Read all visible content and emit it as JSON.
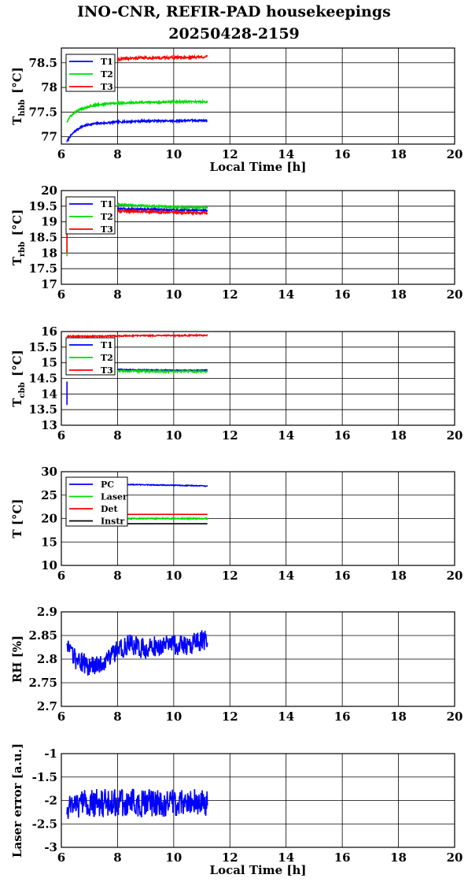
{
  "figure": {
    "title_line1": "INO-CNR, REFIR-PAD housekeepings",
    "title_line2": "20250428-2159"
  },
  "colors": {
    "blue": "#0000ff",
    "green": "#00dd00",
    "red": "#ff0000",
    "black": "#000000"
  },
  "chart_data": [
    {
      "type": "line",
      "ylabel_main": "T",
      "ylabel_sub": "hbb",
      "ylabel_unit": "[°C]",
      "xlabel": "Local Time [h]",
      "xlim": [
        6,
        20
      ],
      "ylim": [
        76.85,
        78.8
      ],
      "xticks": [
        "6",
        "8",
        "10",
        "12",
        "14",
        "16",
        "18",
        "20"
      ],
      "yticks": [
        {
          "v": 77,
          "label": "77"
        },
        {
          "v": 77.5,
          "label": "77.5"
        },
        {
          "v": 78,
          "label": "78"
        },
        {
          "v": 78.5,
          "label": "78.5"
        }
      ],
      "legend": [
        "T1",
        "T2",
        "T3"
      ],
      "series": [
        {
          "name": "T1",
          "color": "blue",
          "x": [
            6.2,
            6.3,
            6.5,
            6.7,
            7.0,
            7.3,
            7.6,
            8.0,
            8.5,
            9.0,
            9.5,
            10.0,
            10.5,
            11.0,
            11.2
          ],
          "y": [
            76.9,
            77.0,
            77.12,
            77.2,
            77.25,
            77.27,
            77.28,
            77.3,
            77.31,
            77.32,
            77.32,
            77.32,
            77.33,
            77.33,
            77.33
          ],
          "noise": 0.02
        },
        {
          "name": "T2",
          "color": "green",
          "x": [
            6.2,
            6.3,
            6.5,
            6.7,
            7.0,
            7.3,
            7.6,
            8.0,
            8.5,
            9.0,
            9.5,
            10.0,
            10.5,
            11.0,
            11.2
          ],
          "y": [
            77.3,
            77.4,
            77.5,
            77.56,
            77.62,
            77.65,
            77.67,
            77.68,
            77.69,
            77.7,
            77.7,
            77.71,
            77.71,
            77.71,
            77.71
          ],
          "noise": 0.02
        },
        {
          "name": "T3",
          "color": "red",
          "x": [
            8.0,
            8.5,
            9.0,
            9.5,
            10.0,
            10.5,
            11.0,
            11.2
          ],
          "y": [
            78.57,
            78.59,
            78.6,
            78.6,
            78.61,
            78.61,
            78.62,
            78.62
          ],
          "noise": 0.025
        }
      ]
    },
    {
      "type": "line",
      "ylabel_main": "T",
      "ylabel_sub": "rbb",
      "ylabel_unit": "[°C]",
      "xlabel": "",
      "xlim": [
        6,
        20
      ],
      "ylim": [
        17,
        20
      ],
      "xticks": [
        "6",
        "8",
        "10",
        "12",
        "14",
        "16",
        "18",
        "20"
      ],
      "yticks": [
        {
          "v": 17,
          "label": "17"
        },
        {
          "v": 17.5,
          "label": "17.5"
        },
        {
          "v": 18,
          "label": "18"
        },
        {
          "v": 18.5,
          "label": "18.5"
        },
        {
          "v": 19,
          "label": "19"
        },
        {
          "v": 19.5,
          "label": "19.5"
        },
        {
          "v": 20,
          "label": "20"
        }
      ],
      "legend": [
        "T1",
        "T2",
        "T3"
      ],
      "series": [
        {
          "name": "T1",
          "color": "blue",
          "x": [
            8.0,
            8.5,
            9.0,
            9.5,
            10.0,
            10.5,
            11.0,
            11.2
          ],
          "y": [
            19.42,
            19.41,
            19.4,
            19.39,
            19.38,
            19.37,
            19.37,
            19.37
          ],
          "noise": 0.03
        },
        {
          "name": "T2",
          "color": "green",
          "x": [
            8.0,
            8.5,
            9.0,
            9.5,
            10.0,
            10.5,
            11.0,
            11.2
          ],
          "y": [
            19.55,
            19.53,
            19.51,
            19.49,
            19.47,
            19.46,
            19.46,
            19.46
          ],
          "noise": 0.03
        },
        {
          "name": "T3",
          "color": "red",
          "x": [
            8.0,
            8.5,
            9.0,
            9.5,
            10.0,
            10.5,
            11.0,
            11.2
          ],
          "y": [
            19.35,
            19.34,
            19.33,
            19.31,
            19.3,
            19.29,
            19.28,
            19.28
          ],
          "noise": 0.04
        }
      ],
      "spikes": [
        {
          "color": "green",
          "x": 6.2,
          "y": [
            17.9,
            18.6
          ]
        },
        {
          "color": "red",
          "x": 6.2,
          "y": [
            18.0,
            18.6
          ]
        }
      ]
    },
    {
      "type": "line",
      "ylabel_main": "T",
      "ylabel_sub": "cbb",
      "ylabel_unit": "[°C]",
      "xlabel": "",
      "xlim": [
        6,
        20
      ],
      "ylim": [
        13,
        16
      ],
      "xticks": [
        "6",
        "8",
        "10",
        "12",
        "14",
        "16",
        "18",
        "20"
      ],
      "yticks": [
        {
          "v": 13,
          "label": "13"
        },
        {
          "v": 13.5,
          "label": "13.5"
        },
        {
          "v": 14,
          "label": "14"
        },
        {
          "v": 14.5,
          "label": "14.5"
        },
        {
          "v": 15,
          "label": "15"
        },
        {
          "v": 15.5,
          "label": "15.5"
        },
        {
          "v": 16,
          "label": "16"
        }
      ],
      "legend": [
        "T1",
        "T2",
        "T3"
      ],
      "series": [
        {
          "name": "T3",
          "color": "red",
          "x": [
            6.2,
            7.0,
            8.0,
            9.0,
            10.0,
            11.0,
            11.2
          ],
          "y": [
            15.85,
            15.85,
            15.86,
            15.87,
            15.87,
            15.88,
            15.88
          ],
          "noise": 0.02
        },
        {
          "name": "T1",
          "color": "blue",
          "x": [
            8.0,
            9.0,
            10.0,
            11.0,
            11.2
          ],
          "y": [
            14.78,
            14.77,
            14.76,
            14.76,
            14.76
          ],
          "noise": 0.015
        },
        {
          "name": "T2",
          "color": "green",
          "x": [
            8.0,
            9.0,
            10.0,
            11.0,
            11.2
          ],
          "y": [
            14.74,
            14.73,
            14.72,
            14.72,
            14.72
          ],
          "noise": 0.03
        }
      ],
      "spikes": [
        {
          "color": "blue",
          "x": 6.2,
          "y": [
            13.65,
            14.4
          ]
        }
      ]
    },
    {
      "type": "line",
      "ylabel_main": "T [°C]",
      "ylabel_sub": "",
      "ylabel_unit": "",
      "xlabel": "",
      "xlim": [
        6,
        20
      ],
      "ylim": [
        10,
        30
      ],
      "xticks": [
        "6",
        "8",
        "10",
        "12",
        "14",
        "16",
        "18",
        "20"
      ],
      "yticks": [
        {
          "v": 10,
          "label": "10"
        },
        {
          "v": 15,
          "label": "15"
        },
        {
          "v": 20,
          "label": "20"
        },
        {
          "v": 25,
          "label": "25"
        },
        {
          "v": 30,
          "label": "30"
        }
      ],
      "legend": [
        "PC",
        "Laser",
        "Det",
        "Instr"
      ],
      "series": [
        {
          "name": "PC",
          "color": "blue",
          "x": [
            8.0,
            9.0,
            10.0,
            11.0,
            11.2
          ],
          "y": [
            27.3,
            27.2,
            27.1,
            27.0,
            26.9
          ],
          "noise": 0.08
        },
        {
          "name": "Laser",
          "color": "green",
          "x": [
            8.0,
            9.0,
            10.0,
            11.0,
            11.2
          ],
          "y": [
            20.0,
            20.0,
            20.0,
            20.0,
            20.0
          ],
          "noise": 0.12
        },
        {
          "name": "Det",
          "color": "red",
          "x": [
            8.0,
            9.0,
            10.0,
            11.0,
            11.2
          ],
          "y": [
            20.9,
            20.9,
            20.9,
            20.9,
            20.9
          ],
          "noise": 0.0
        },
        {
          "name": "Instr",
          "color": "black",
          "x": [
            8.0,
            9.0,
            10.0,
            11.0,
            11.2
          ],
          "y": [
            18.9,
            18.9,
            18.9,
            18.9,
            18.9
          ],
          "noise": 0.0
        }
      ]
    },
    {
      "type": "line",
      "ylabel_main": "RH [%]",
      "ylabel_sub": "",
      "ylabel_unit": "",
      "xlabel": "",
      "xlim": [
        6,
        20
      ],
      "ylim": [
        2.7,
        2.9
      ],
      "xticks": [
        "6",
        "8",
        "10",
        "12",
        "14",
        "16",
        "18",
        "20"
      ],
      "yticks": [
        {
          "v": 2.7,
          "label": "2.7"
        },
        {
          "v": 2.75,
          "label": "2.75"
        },
        {
          "v": 2.8,
          "label": "2.8"
        },
        {
          "v": 2.85,
          "label": "2.85"
        },
        {
          "v": 2.9,
          "label": "2.9"
        }
      ],
      "legend": [],
      "series": [
        {
          "name": "",
          "color": "blue",
          "x": [
            6.2,
            6.5,
            7.0,
            7.5,
            8.0,
            8.5,
            9.0,
            9.5,
            10.0,
            10.5,
            11.0,
            11.2
          ],
          "y": [
            2.82,
            2.8,
            2.785,
            2.795,
            2.82,
            2.83,
            2.82,
            2.83,
            2.83,
            2.83,
            2.84,
            2.84
          ],
          "noise": 0.022
        }
      ]
    },
    {
      "type": "line",
      "ylabel_main": "Laser error [a.u.]",
      "ylabel_sub": "",
      "ylabel_unit": "",
      "xlabel": "Local Time [h]",
      "xlim": [
        6,
        20
      ],
      "ylim": [
        -3,
        -1
      ],
      "xticks": [
        "6",
        "8",
        "10",
        "12",
        "14",
        "16",
        "18",
        "20"
      ],
      "yticks": [
        {
          "v": -3,
          "label": "-3"
        },
        {
          "v": -2.5,
          "label": "-2.5"
        },
        {
          "v": -2,
          "label": "-2"
        },
        {
          "v": -1.5,
          "label": "-1.5"
        },
        {
          "v": -1,
          "label": "-1"
        }
      ],
      "legend": [],
      "series": [
        {
          "name": "",
          "color": "blue",
          "x": [
            6.2,
            7.0,
            8.0,
            9.0,
            10.0,
            11.0,
            11.2
          ],
          "y": [
            -2.1,
            -2.05,
            -2.05,
            -2.05,
            -2.05,
            -2.05,
            -2.05
          ],
          "noise": 0.3
        }
      ]
    }
  ]
}
